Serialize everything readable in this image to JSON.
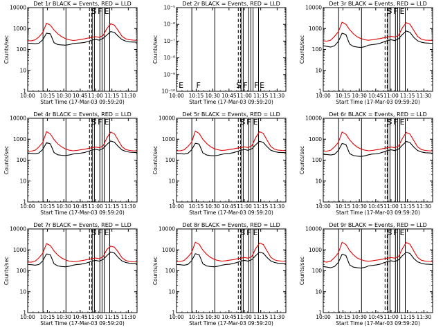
{
  "chart_data": [
    {
      "type": "line",
      "title": "Det 1r  BLACK = Events, RED = LLD",
      "xlabel": "Start Time (17-Mar-03 09:59:20)",
      "ylabel": "Counts/sec",
      "yscale": "log",
      "xlim": [
        0,
        100
      ],
      "ylim": [
        1,
        10000
      ],
      "x_tick_labels": [
        "10:00",
        "10:15",
        "10:30",
        "10:45",
        "11:00",
        "11:15",
        "11:30"
      ],
      "y_tick_labels": [
        "1",
        "10",
        "100",
        "1000",
        "10000"
      ],
      "markers": [
        "S",
        "F",
        "E"
      ],
      "series": [
        {
          "color": "#000000",
          "values": [
            200,
            195,
            185,
            200,
            290,
            600,
            560,
            210,
            170,
            165,
            160,
            170,
            190,
            200,
            205,
            215,
            240,
            280,
            300,
            280,
            340,
            490,
            720,
            650,
            430,
            300,
            250,
            230,
            225,
            220
          ]
        },
        {
          "color": "#e00000",
          "values": [
            260,
            260,
            290,
            400,
            650,
            1800,
            1450,
            850,
            560,
            410,
            330,
            290,
            270,
            280,
            300,
            320,
            350,
            380,
            410,
            380,
            470,
            1000,
            1700,
            1450,
            800,
            430,
            320,
            290,
            280,
            275
          ]
        }
      ]
    },
    {
      "type": "line",
      "title": "Det 2r  BLACK = Events, RED = LLD",
      "xlabel": "Start Time (17-Mar-03 09:59:20)",
      "ylabel": "Counts/sec",
      "yscale": "log",
      "xlim": [
        0,
        100
      ],
      "ylim": [
        1e-10,
        1e-05
      ],
      "x_tick_labels": [
        "10:00",
        "10:15",
        "10:30",
        "10:45",
        "11:00",
        "11:15",
        "11:30"
      ],
      "y_tick_labels": [
        "10⁻¹⁰",
        "10⁻⁹",
        "10⁻⁸",
        "10⁻⁷",
        "10⁻⁶",
        "10⁻⁵"
      ],
      "markers": [
        "E",
        "F",
        "S",
        "F",
        "F",
        "E"
      ],
      "series": []
    },
    {
      "type": "line",
      "title": "Det 3r  BLACK = Events, RED = LLD",
      "xlabel": "Start Time (17-Mar-03 09:59:20)",
      "ylabel": "Counts/sec",
      "yscale": "log",
      "xlim": [
        0,
        100
      ],
      "ylim": [
        1,
        10000
      ],
      "x_tick_labels": [
        "10:00",
        "10:15",
        "10:30",
        "10:45",
        "11:00",
        "11:15",
        "11:30"
      ],
      "y_tick_labels": [
        "1",
        "10",
        "100",
        "1000",
        "10000"
      ],
      "markers": [
        "S",
        "F",
        "E"
      ],
      "series": [
        {
          "color": "#000000",
          "values": [
            150,
            140,
            130,
            150,
            240,
            600,
            520,
            180,
            140,
            130,
            125,
            135,
            160,
            170,
            180,
            195,
            230,
            265,
            290,
            265,
            330,
            520,
            760,
            660,
            380,
            260,
            220,
            205,
            200,
            195
          ]
        },
        {
          "color": "#e00000",
          "values": [
            260,
            250,
            280,
            420,
            700,
            2000,
            1600,
            880,
            560,
            400,
            330,
            290,
            275,
            290,
            310,
            330,
            360,
            390,
            420,
            390,
            480,
            1100,
            1900,
            1600,
            820,
            420,
            310,
            280,
            275,
            270
          ]
        }
      ]
    },
    {
      "type": "line",
      "title": "Det 4r  BLACK = Events, RED = LLD",
      "xlabel": "Start Time (17-Mar-03 09:59:20)",
      "ylabel": "Counts/sec",
      "yscale": "log",
      "xlim": [
        0,
        100
      ],
      "ylim": [
        1,
        10000
      ],
      "x_tick_labels": [
        "10:00",
        "10:15",
        "10:30",
        "10:45",
        "11:00",
        "11:15",
        "11:30"
      ],
      "y_tick_labels": [
        "1",
        "10",
        "100",
        "1000",
        "10000"
      ],
      "markers": [
        "S",
        "F",
        "E"
      ],
      "series": [
        {
          "color": "#000000",
          "values": [
            220,
            210,
            200,
            220,
            320,
            680,
            600,
            230,
            180,
            170,
            165,
            175,
            195,
            210,
            215,
            230,
            260,
            300,
            330,
            300,
            360,
            560,
            820,
            720,
            450,
            310,
            260,
            240,
            235,
            230
          ]
        },
        {
          "color": "#e00000",
          "values": [
            270,
            270,
            300,
            430,
            700,
            2300,
            1800,
            950,
            600,
            430,
            340,
            300,
            280,
            290,
            310,
            330,
            360,
            390,
            420,
            390,
            480,
            1150,
            2200,
            1800,
            880,
            440,
            320,
            290,
            280,
            275
          ]
        }
      ]
    },
    {
      "type": "line",
      "title": "Det 5r  BLACK = Events, RED = LLD",
      "xlabel": "Start Time (17-Mar-03 09:59:20)",
      "ylabel": "Counts/sec",
      "yscale": "log",
      "xlim": [
        0,
        100
      ],
      "ylim": [
        1,
        10000
      ],
      "x_tick_labels": [
        "10:00",
        "10:15",
        "10:30",
        "10:45",
        "11:00",
        "11:15",
        "11:30"
      ],
      "y_tick_labels": [
        "1",
        "10",
        "100",
        "1000",
        "10000"
      ],
      "markers": [
        "S",
        "F",
        "E"
      ],
      "series": [
        {
          "color": "#000000",
          "values": [
            210,
            205,
            195,
            210,
            310,
            640,
            580,
            220,
            175,
            165,
            160,
            170,
            190,
            205,
            210,
            225,
            255,
            295,
            320,
            295,
            350,
            540,
            800,
            700,
            440,
            300,
            255,
            235,
            230,
            225
          ]
        },
        {
          "color": "#e00000",
          "values": [
            280,
            280,
            310,
            440,
            720,
            2400,
            1900,
            980,
            620,
            440,
            350,
            310,
            290,
            300,
            320,
            340,
            370,
            400,
            430,
            400,
            490,
            1200,
            2300,
            1900,
            900,
            450,
            330,
            300,
            290,
            285
          ]
        }
      ]
    },
    {
      "type": "line",
      "title": "Det 6r  BLACK = Events, RED = LLD",
      "xlabel": "Start Time (17-Mar-03 09:59:20)",
      "ylabel": "Counts/sec",
      "yscale": "log",
      "xlim": [
        0,
        100
      ],
      "ylim": [
        1,
        10000
      ],
      "x_tick_labels": [
        "10:00",
        "10:15",
        "10:30",
        "10:45",
        "11:00",
        "11:15",
        "11:30"
      ],
      "y_tick_labels": [
        "1",
        "10",
        "100",
        "1000",
        "10000"
      ],
      "markers": [
        "S",
        "F",
        "E"
      ],
      "series": [
        {
          "color": "#000000",
          "values": [
            190,
            185,
            175,
            190,
            290,
            620,
            560,
            205,
            165,
            155,
            150,
            160,
            180,
            195,
            200,
            215,
            245,
            285,
            310,
            285,
            340,
            520,
            780,
            690,
            420,
            290,
            245,
            225,
            220,
            215
          ]
        },
        {
          "color": "#e00000",
          "values": [
            270,
            270,
            300,
            430,
            700,
            2200,
            1750,
            930,
            590,
            420,
            340,
            300,
            280,
            290,
            310,
            330,
            360,
            390,
            420,
            390,
            480,
            1100,
            2100,
            1750,
            860,
            430,
            320,
            290,
            280,
            275
          ]
        }
      ]
    },
    {
      "type": "line",
      "title": "Det 7r  BLACK = Events, RED = LLD",
      "xlabel": "Start Time (17-Mar-03 09:59:20)",
      "ylabel": "Counts/sec",
      "yscale": "log",
      "xlim": [
        0,
        100
      ],
      "ylim": [
        1,
        10000
      ],
      "x_tick_labels": [
        "10:00",
        "10:15",
        "10:30",
        "10:45",
        "11:00",
        "11:15",
        "11:30"
      ],
      "y_tick_labels": [
        "1",
        "10",
        "100",
        "1000",
        "10000"
      ],
      "markers": [
        "S",
        "F",
        "E"
      ],
      "series": [
        {
          "color": "#000000",
          "values": [
            200,
            195,
            185,
            200,
            300,
            640,
            580,
            215,
            170,
            160,
            155,
            165,
            185,
            200,
            205,
            220,
            250,
            290,
            315,
            290,
            345,
            530,
            790,
            700,
            430,
            295,
            250,
            230,
            225,
            220
          ]
        },
        {
          "color": "#e00000",
          "values": [
            260,
            260,
            290,
            420,
            690,
            2000,
            1600,
            880,
            560,
            410,
            330,
            290,
            270,
            280,
            300,
            320,
            350,
            380,
            410,
            380,
            470,
            1050,
            1500,
            1350,
            780,
            420,
            310,
            280,
            270,
            265
          ]
        }
      ]
    },
    {
      "type": "line",
      "title": "Det 8r  BLACK = Events, RED = LLD",
      "xlabel": "Start Time (17-Mar-03 09:59:20)",
      "ylabel": "Counts/sec",
      "yscale": "log",
      "xlim": [
        0,
        100
      ],
      "ylim": [
        1,
        10000
      ],
      "x_tick_labels": [
        "10:00",
        "10:15",
        "10:30",
        "10:45",
        "11:00",
        "11:15",
        "11:30"
      ],
      "y_tick_labels": [
        "1",
        "10",
        "100",
        "1000",
        "10000"
      ],
      "markers": [
        "S",
        "F",
        "E"
      ],
      "series": [
        {
          "color": "#000000",
          "values": [
            200,
            195,
            185,
            200,
            300,
            650,
            590,
            215,
            170,
            160,
            155,
            165,
            185,
            200,
            205,
            220,
            250,
            290,
            315,
            290,
            345,
            530,
            780,
            690,
            430,
            295,
            250,
            230,
            225,
            220
          ]
        },
        {
          "color": "#e00000",
          "values": [
            280,
            280,
            310,
            450,
            740,
            2300,
            1850,
            960,
            610,
            440,
            350,
            310,
            290,
            300,
            320,
            340,
            370,
            400,
            430,
            400,
            490,
            1150,
            2100,
            1800,
            880,
            440,
            330,
            300,
            290,
            285
          ]
        }
      ]
    },
    {
      "type": "line",
      "title": "Det 9r  BLACK = Events, RED = LLD",
      "xlabel": "Start Time (17-Mar-03 09:59:20)",
      "ylabel": "Counts/sec",
      "yscale": "log",
      "xlim": [
        0,
        100
      ],
      "ylim": [
        1,
        10000
      ],
      "x_tick_labels": [
        "10:00",
        "10:15",
        "10:30",
        "10:45",
        "11:00",
        "11:15",
        "11:30"
      ],
      "y_tick_labels": [
        "1",
        "10",
        "100",
        "1000",
        "10000"
      ],
      "markers": [
        "S",
        "F",
        "E"
      ],
      "series": [
        {
          "color": "#000000",
          "values": [
            160,
            150,
            140,
            160,
            250,
            620,
            540,
            190,
            150,
            140,
            135,
            145,
            170,
            180,
            190,
            205,
            240,
            275,
            300,
            275,
            340,
            530,
            770,
            670,
            390,
            270,
            230,
            210,
            205,
            200
          ]
        },
        {
          "color": "#e00000",
          "values": [
            270,
            260,
            290,
            430,
            720,
            2300,
            1800,
            920,
            580,
            410,
            340,
            300,
            285,
            300,
            320,
            340,
            370,
            400,
            430,
            400,
            490,
            1150,
            2250,
            1850,
            880,
            440,
            320,
            290,
            280,
            275
          ]
        }
      ]
    }
  ]
}
